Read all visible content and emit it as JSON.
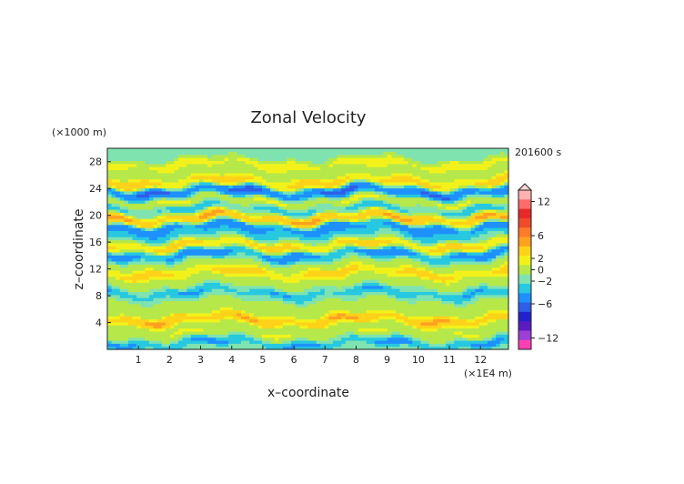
{
  "chart_data": {
    "type": "heatmap",
    "title": "Zonal Velocity",
    "xlabel": "x–coordinate",
    "ylabel": "z–coordinate",
    "x_unit": "(×1E4 m)",
    "y_unit": "(×1000 m)",
    "time_label": "201600 s",
    "xlim": [
      0,
      12.9
    ],
    "ylim": [
      0,
      30
    ],
    "x_ticks": [
      "1",
      "2",
      "3",
      "4",
      "5",
      "6",
      "7",
      "8",
      "9",
      "10",
      "11",
      "12"
    ],
    "y_ticks": [
      "4",
      "8",
      "12",
      "16",
      "20",
      "24",
      "28"
    ],
    "colorbar": {
      "levels": [
        -14,
        -12,
        -10,
        -8,
        -6,
        -4,
        -2,
        -1,
        0,
        1,
        2,
        4,
        6,
        8,
        10,
        12,
        14
      ],
      "colors": [
        "#ff3fb4",
        "#9b3fd6",
        "#5a1cc0",
        "#2222cc",
        "#2f5de6",
        "#1e90ff",
        "#27c8e0",
        "#7fe3b0",
        "#b6e84a",
        "#f2f21a",
        "#ffd21a",
        "#ffa020",
        "#ff7a2a",
        "#f04a2a",
        "#e62828",
        "#ff6a6a",
        "#ffb2b2"
      ],
      "tick_labels": [
        "12",
        "6",
        "2",
        "0",
        "−2",
        "−6",
        "−12"
      ]
    },
    "bands": [
      {
        "z": 1.0,
        "u": -2.5
      },
      {
        "z": 2.5,
        "u": 1.2
      },
      {
        "z": 4.5,
        "u": 4.5
      },
      {
        "z": 6.5,
        "u": 0.8
      },
      {
        "z": 8.5,
        "u": -2.2
      },
      {
        "z": 10.0,
        "u": 0.6
      },
      {
        "z": 11.5,
        "u": 3.0
      },
      {
        "z": 13.0,
        "u": 0.4
      },
      {
        "z": 14.2,
        "u": -3.5
      },
      {
        "z": 15.6,
        "u": 3.2
      },
      {
        "z": 17.0,
        "u": -1.5
      },
      {
        "z": 18.3,
        "u": -4.0
      },
      {
        "z": 19.6,
        "u": 5.0
      },
      {
        "z": 21.0,
        "u": -2.0
      },
      {
        "z": 22.2,
        "u": 1.5
      },
      {
        "z": 23.6,
        "u": -5.0
      },
      {
        "z": 25.0,
        "u": 3.5
      },
      {
        "z": 26.3,
        "u": 0.2
      },
      {
        "z": 27.7,
        "u": 2.0
      },
      {
        "z": 29.2,
        "u": -1.0
      }
    ]
  }
}
